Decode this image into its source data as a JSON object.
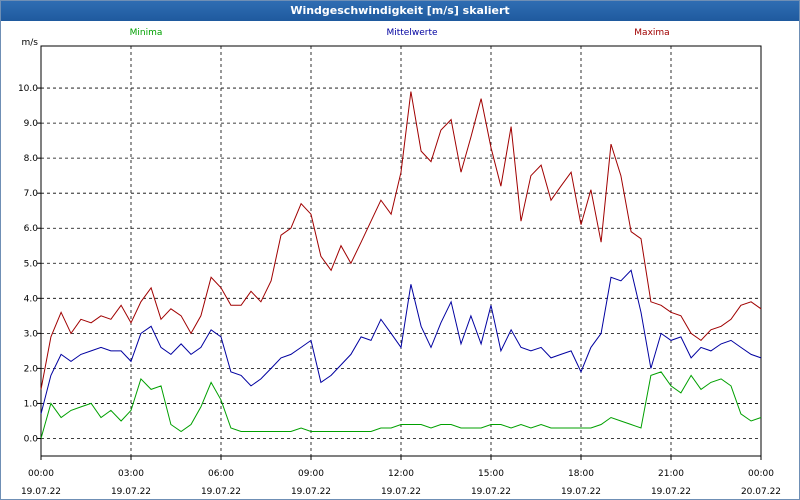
{
  "window": {
    "title": "Windgeschwindigkeit [m/s] skaliert"
  },
  "chart_data": {
    "type": "line",
    "title": "Windgeschwindigkeit [m/s] skaliert",
    "ylabel": "m/s",
    "xlabel": "",
    "ylim": [
      -0.5,
      11.2
    ],
    "xlim": [
      0,
      24
    ],
    "grid": true,
    "legend_placement": "top",
    "y_ticks": [
      "0.0",
      "1.0",
      "2.0",
      "3.0",
      "4.0",
      "5.0",
      "6.0",
      "7.0",
      "8.0",
      "9.0",
      "10.0"
    ],
    "y_tick_values": [
      0,
      1,
      2,
      3,
      4,
      5,
      6,
      7,
      8,
      9,
      10
    ],
    "x_tick_values": [
      0,
      3,
      6,
      9,
      12,
      15,
      18,
      21,
      24
    ],
    "x_tick_times": [
      "00:00",
      "03:00",
      "06:00",
      "09:00",
      "12:00",
      "15:00",
      "18:00",
      "21:00",
      "00:00"
    ],
    "x_tick_dates": [
      "19.07.22",
      "19.07.22",
      "19.07.22",
      "19.07.22",
      "19.07.22",
      "19.07.22",
      "19.07.22",
      "19.07.22",
      "20.07.22"
    ],
    "x": [
      0,
      0.33,
      0.67,
      1,
      1.33,
      1.67,
      2,
      2.33,
      2.67,
      3,
      3.33,
      3.67,
      4,
      4.33,
      4.67,
      5,
      5.33,
      5.67,
      6,
      6.33,
      6.67,
      7,
      7.33,
      7.67,
      8,
      8.33,
      8.67,
      9,
      9.33,
      9.67,
      10,
      10.33,
      10.67,
      11,
      11.33,
      11.67,
      12,
      12.33,
      12.67,
      13,
      13.33,
      13.67,
      14,
      14.33,
      14.67,
      15,
      15.33,
      15.67,
      16,
      16.33,
      16.67,
      17,
      17.33,
      17.67,
      18,
      18.33,
      18.67,
      19,
      19.33,
      19.67,
      20,
      20.33,
      20.67,
      21,
      21.33,
      21.67,
      22,
      22.33,
      22.67,
      23,
      23.33,
      23.67,
      24
    ],
    "series": [
      {
        "name": "Maxima",
        "color": "#a00000",
        "values": [
          1.4,
          2.9,
          3.6,
          3.0,
          3.4,
          3.3,
          3.5,
          3.4,
          3.8,
          3.3,
          3.9,
          4.3,
          3.4,
          3.7,
          3.5,
          3.0,
          3.5,
          4.6,
          4.3,
          3.8,
          3.8,
          4.2,
          3.9,
          4.5,
          5.8,
          6.0,
          6.7,
          6.4,
          5.2,
          4.8,
          5.5,
          5.0,
          5.6,
          6.2,
          6.8,
          6.4,
          7.6,
          9.9,
          8.2,
          7.9,
          8.8,
          9.1,
          7.6,
          8.6,
          9.7,
          8.3,
          7.2,
          8.9,
          6.2,
          7.5,
          7.8,
          6.8,
          7.2,
          7.6,
          6.1,
          7.1,
          5.6,
          8.4,
          7.5,
          5.9,
          5.7,
          3.9,
          3.8,
          3.6,
          3.5,
          3.0,
          2.8,
          3.1,
          3.2,
          3.4,
          3.8,
          3.9,
          3.7
        ],
        "label_pos": "right"
      },
      {
        "name": "Mittelwerte",
        "color": "#0000a0",
        "values": [
          0.7,
          1.8,
          2.4,
          2.2,
          2.4,
          2.5,
          2.6,
          2.5,
          2.5,
          2.2,
          3.0,
          3.2,
          2.6,
          2.4,
          2.7,
          2.4,
          2.6,
          3.1,
          2.9,
          1.9,
          1.8,
          1.5,
          1.7,
          2.0,
          2.3,
          2.4,
          2.6,
          2.8,
          1.6,
          1.8,
          2.1,
          2.4,
          2.9,
          2.8,
          3.4,
          3.0,
          2.6,
          4.4,
          3.2,
          2.6,
          3.3,
          3.9,
          2.7,
          3.5,
          2.7,
          3.8,
          2.5,
          3.1,
          2.6,
          2.5,
          2.6,
          2.3,
          2.4,
          2.5,
          1.9,
          2.6,
          3.0,
          4.6,
          4.5,
          4.8,
          3.6,
          2.0,
          3.0,
          2.8,
          2.9,
          2.3,
          2.6,
          2.5,
          2.7,
          2.8,
          2.6,
          2.4,
          2.3
        ],
        "label_pos": "middle"
      },
      {
        "name": "Minima",
        "color": "#00a000",
        "values": [
          0.0,
          1.0,
          0.6,
          0.8,
          0.9,
          1.0,
          0.6,
          0.8,
          0.5,
          0.8,
          1.7,
          1.4,
          1.5,
          0.4,
          0.2,
          0.4,
          0.9,
          1.6,
          1.1,
          0.3,
          0.2,
          0.2,
          0.2,
          0.2,
          0.2,
          0.2,
          0.3,
          0.2,
          0.2,
          0.2,
          0.2,
          0.2,
          0.2,
          0.2,
          0.3,
          0.3,
          0.4,
          0.4,
          0.4,
          0.3,
          0.4,
          0.4,
          0.3,
          0.3,
          0.3,
          0.4,
          0.4,
          0.3,
          0.4,
          0.3,
          0.4,
          0.3,
          0.3,
          0.3,
          0.3,
          0.3,
          0.4,
          0.6,
          0.5,
          0.4,
          0.3,
          1.8,
          1.9,
          1.5,
          1.3,
          1.8,
          1.4,
          1.6,
          1.7,
          1.5,
          0.7,
          0.5,
          0.6
        ],
        "label_pos": "left"
      }
    ]
  }
}
